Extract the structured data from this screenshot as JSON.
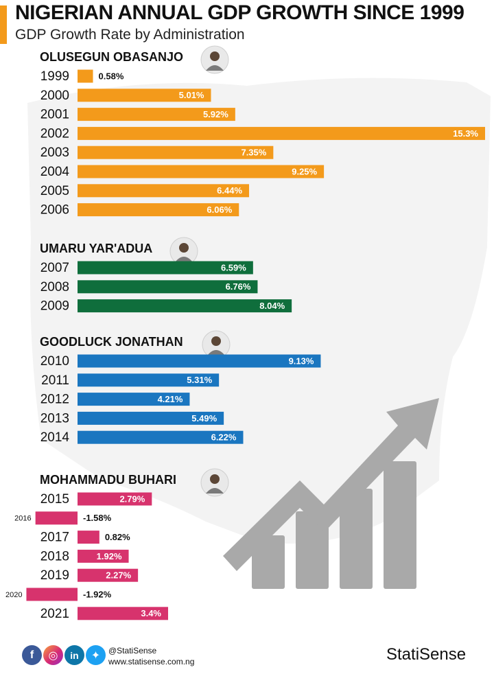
{
  "title": "NIGERIAN ANNUAL GDP GROWTH SINCE 1999",
  "subtitle": "GDP Growth Rate by Administration",
  "colors": {
    "accent": "#f39a1b",
    "obasanjo": "#f39a1b",
    "yaradua": "#0f6e3c",
    "jonathan": "#1a76c0",
    "buhari": "#d7336d",
    "growth_icon": "#a9a9a9"
  },
  "icons": [
    "person-portrait-icon",
    "growth-arrow-icon",
    "facebook-icon",
    "instagram-icon",
    "linkedin-icon",
    "twitter-icon"
  ],
  "footer": {
    "handle": "@StatiSense",
    "website": "www.statisense.com.ng",
    "brand": "StatiSense"
  },
  "chart_data": {
    "type": "bar",
    "orientation": "horizontal",
    "groups": [
      {
        "name": "OLUSEGUN OBASANJO",
        "color": "#f39a1b",
        "categories": [
          "1999",
          "2000",
          "2001",
          "2002",
          "2003",
          "2004",
          "2005",
          "2006"
        ],
        "values": [
          0.58,
          5.01,
          5.92,
          15.3,
          7.35,
          9.25,
          6.44,
          6.06
        ],
        "labels": [
          "0.58%",
          "5.01%",
          "5.92%",
          "15.3%",
          "7.35%",
          "9.25%",
          "6.44%",
          "6.06%"
        ]
      },
      {
        "name": "UMARU YAR'ADUA",
        "color": "#0f6e3c",
        "categories": [
          "2007",
          "2008",
          "2009"
        ],
        "values": [
          6.59,
          6.76,
          8.04
        ],
        "labels": [
          "6.59%",
          "6.76%",
          "8.04%"
        ]
      },
      {
        "name": "GOODLUCK JONATHAN",
        "color": "#1a76c0",
        "categories": [
          "2010",
          "2011",
          "2012",
          "2013",
          "2014"
        ],
        "values": [
          9.13,
          5.31,
          4.21,
          5.49,
          6.22
        ],
        "labels": [
          "9.13%",
          "5.31%",
          "4.21%",
          "5.49%",
          "6.22%"
        ]
      },
      {
        "name": "MOHAMMADU BUHARI",
        "color": "#d7336d",
        "categories": [
          "2015",
          "2016",
          "2017",
          "2018",
          "2019",
          "2020",
          "2021"
        ],
        "values": [
          2.79,
          -1.58,
          0.82,
          1.92,
          2.27,
          -1.92,
          3.4
        ],
        "labels": [
          "2.79%",
          "-1.58%",
          "0.82%",
          "1.92%",
          "2.27%",
          "-1.92%",
          "3.4%"
        ]
      }
    ],
    "xlim": [
      -2.0,
      15.3
    ],
    "grid": false,
    "legend": "none"
  }
}
